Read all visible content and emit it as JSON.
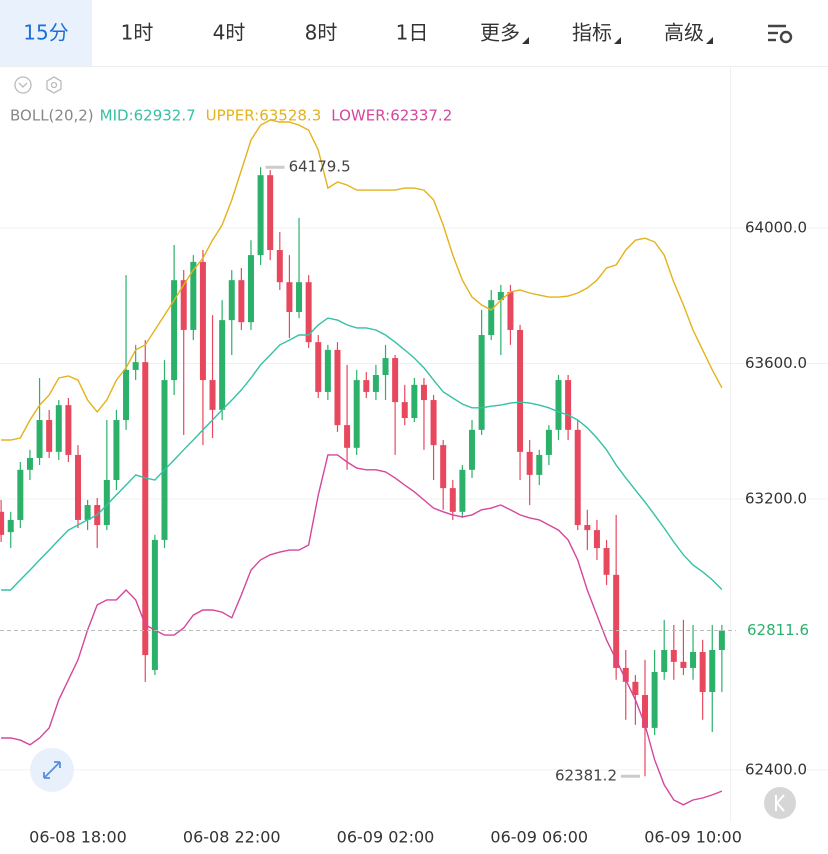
{
  "tabs": [
    {
      "label": "15分"
    },
    {
      "label": "1时"
    },
    {
      "label": "4时"
    },
    {
      "label": "8时"
    },
    {
      "label": "1日"
    },
    {
      "label": "更多",
      "menu": true
    },
    {
      "label": "指标",
      "menu": true
    },
    {
      "label": "高级",
      "menu": true
    }
  ],
  "active_tab": 0,
  "chart_data": {
    "type": "candlestick",
    "indicator": "BOLL(20,2)",
    "up_color": "#2bb16a",
    "down_color": "#e8485e",
    "x": [
      "06-08 16:00",
      "06-08 16:15",
      "06-08 16:30",
      "06-08 16:45",
      "06-08 17:00",
      "06-08 17:15",
      "06-08 17:30",
      "06-08 17:45",
      "06-08 18:00",
      "06-08 18:15",
      "06-08 18:30",
      "06-08 18:45",
      "06-08 19:00",
      "06-08 19:15",
      "06-08 19:30",
      "06-08 19:45",
      "06-08 20:00",
      "06-08 20:15",
      "06-08 20:30",
      "06-08 20:45",
      "06-08 21:00",
      "06-08 21:15",
      "06-08 21:30",
      "06-08 21:45",
      "06-08 22:00",
      "06-08 22:15",
      "06-08 22:30",
      "06-08 22:45",
      "06-08 23:00",
      "06-08 23:15",
      "06-08 23:30",
      "06-08 23:45",
      "06-09 00:00",
      "06-09 00:15",
      "06-09 00:30",
      "06-09 00:45",
      "06-09 01:00",
      "06-09 01:15",
      "06-09 01:30",
      "06-09 01:45",
      "06-09 02:00",
      "06-09 02:15",
      "06-09 02:30",
      "06-09 02:45",
      "06-09 03:00",
      "06-09 03:15",
      "06-09 03:30",
      "06-09 03:45",
      "06-09 04:00",
      "06-09 04:15",
      "06-09 04:30",
      "06-09 04:45",
      "06-09 05:00",
      "06-09 05:15",
      "06-09 05:30",
      "06-09 05:45",
      "06-09 06:00",
      "06-09 06:15",
      "06-09 06:30",
      "06-09 06:45",
      "06-09 07:00",
      "06-09 07:15",
      "06-09 07:30",
      "06-09 07:45",
      "06-09 08:00",
      "06-09 08:15",
      "06-09 08:30",
      "06-09 08:45",
      "06-09 09:00",
      "06-09 09:15",
      "06-09 09:30",
      "06-09 09:45",
      "06-09 10:00",
      "06-09 10:15",
      "06-09 10:30",
      "06-09 10:45"
    ],
    "open": [
      63162,
      63102,
      63138,
      63286,
      63321,
      63433,
      63339,
      63477,
      63330,
      63138,
      63182,
      63123,
      63256,
      63433,
      63581,
      63604,
      62695,
      63079,
      63551,
      63846,
      63699,
      63900,
      63551,
      63463,
      63728,
      63846,
      63722,
      63920,
      64156,
      63935,
      63840,
      63752,
      63840,
      63663,
      63516,
      63640,
      63418,
      63351,
      63551,
      63516,
      63566,
      63616,
      63486,
      63439,
      63537,
      63492,
      63359,
      63232,
      63162,
      63286,
      63404,
      63684,
      63787,
      63811,
      63699,
      63339,
      63271,
      63330,
      63404,
      63551,
      63404,
      63123,
      63108,
      63055,
      62976,
      62701,
      62660,
      62621,
      62524,
      62689,
      62754,
      62719,
      62701,
      62748,
      62630,
      62754
    ],
    "high": [
      63197,
      63162,
      63309,
      63345,
      63557,
      63463,
      63492,
      63498,
      63359,
      63197,
      63203,
      63433,
      63463,
      63861,
      63655,
      63669,
      63094,
      63610,
      63950,
      63876,
      63920,
      63935,
      63743,
      63787,
      63876,
      63882,
      63964,
      64179.5,
      64171,
      63988,
      63920,
      64030,
      63861,
      63684,
      63655,
      63663,
      63596,
      63581,
      63575,
      63596,
      63655,
      63625,
      63537,
      63557,
      63557,
      63507,
      63374,
      63256,
      63300,
      63433,
      63758,
      63817,
      63832,
      63832,
      63714,
      63374,
      63345,
      63418,
      63566,
      63566,
      63433,
      63168,
      63138,
      63079,
      63153,
      62754,
      62680,
      62725,
      62754,
      62843,
      62828,
      62843,
      62828,
      62784,
      62828,
      62828
    ],
    "low": [
      63073,
      63055,
      63114,
      63256,
      63300,
      63321,
      63315,
      63309,
      63114,
      63108,
      63055,
      63108,
      63226,
      63404,
      63551,
      62660,
      62680,
      63055,
      63507,
      63389,
      63669,
      63359,
      63380,
      63433,
      63625,
      63699,
      63699,
      63891,
      63905,
      63817,
      63675,
      63734,
      63646,
      63498,
      63492,
      63398,
      63286,
      63330,
      63498,
      63492,
      63492,
      63330,
      63418,
      63427,
      63345,
      63256,
      63168,
      63138,
      63144,
      63262,
      63389,
      63669,
      63625,
      63655,
      63256,
      63182,
      63241,
      63300,
      63374,
      63374,
      63108,
      63049,
      63020,
      62946,
      62666,
      62548,
      62533,
      62381.2,
      62503,
      62666,
      62666,
      62680,
      62666,
      62548,
      62512,
      62630
    ],
    "close": [
      63094,
      63138,
      63286,
      63321,
      63433,
      63339,
      63477,
      63330,
      63138,
      63182,
      63123,
      63256,
      63433,
      63581,
      63604,
      62739,
      63079,
      63551,
      63846,
      63699,
      63900,
      63551,
      63463,
      63728,
      63846,
      63722,
      63920,
      64156,
      63935,
      63840,
      63752,
      63840,
      63663,
      63516,
      63640,
      63418,
      63351,
      63551,
      63516,
      63566,
      63616,
      63486,
      63439,
      63537,
      63492,
      63359,
      63232,
      63162,
      63286,
      63404,
      63684,
      63787,
      63811,
      63699,
      63339,
      63271,
      63330,
      63404,
      63551,
      63404,
      63123,
      63108,
      63055,
      62976,
      62701,
      62660,
      62621,
      62524,
      62689,
      62754,
      62719,
      62701,
      62748,
      62630,
      62754,
      62811.6
    ],
    "series": [
      {
        "name": "MID:62932.7",
        "color": "#35c1a5",
        "values": [
          62931,
          62931,
          62961,
          62990,
          63020,
          63049,
          63079,
          63108,
          63123,
          63138,
          63153,
          63182,
          63212,
          63241,
          63271,
          63262,
          63256,
          63286,
          63315,
          63345,
          63374,
          63404,
          63433,
          63463,
          63492,
          63522,
          63557,
          63596,
          63625,
          63655,
          63669,
          63684,
          63684,
          63714,
          63734,
          63728,
          63714,
          63705,
          63705,
          63699,
          63684,
          63663,
          63640,
          63616,
          63587,
          63551,
          63516,
          63498,
          63480,
          63469,
          63469,
          63474,
          63477,
          63483,
          63486,
          63483,
          63477,
          63469,
          63457,
          63448,
          63433,
          63410,
          63380,
          63345,
          63300,
          63262,
          63226,
          63191,
          63153,
          63114,
          63073,
          63035,
          63005,
          62985,
          62961,
          62932.7
        ]
      },
      {
        "name": "UPPER:63528.3",
        "color": "#e4b21c",
        "values": [
          63374,
          63374,
          63380,
          63433,
          63477,
          63507,
          63557,
          63563,
          63551,
          63492,
          63457,
          63492,
          63551,
          63587,
          63640,
          63655,
          63699,
          63743,
          63787,
          63832,
          63876,
          63911,
          63964,
          64009,
          64083,
          64171,
          64260,
          64304,
          64319,
          64313,
          64313,
          64304,
          64289,
          64230,
          64118,
          64136,
          64127,
          64112,
          64112,
          64112,
          64112,
          64112,
          64118,
          64118,
          64112,
          64083,
          64009,
          63920,
          63846,
          63796,
          63773,
          63758,
          63787,
          63811,
          63817,
          63808,
          63802,
          63796,
          63796,
          63799,
          63808,
          63823,
          63846,
          63882,
          63891,
          63935,
          63964,
          63970,
          63959,
          63920,
          63840,
          63773,
          63699,
          63640,
          63581,
          63528.3
        ]
      },
      {
        "name": "LOWER:62337.2",
        "color": "#d5469c",
        "values": [
          62494,
          62494,
          62488,
          62474,
          62494,
          62524,
          62607,
          62666,
          62725,
          62813,
          62887,
          62902,
          62902,
          62931,
          62902,
          62828,
          62813,
          62798,
          62798,
          62819,
          62857,
          62872,
          62872,
          62866,
          62849,
          62917,
          62990,
          63020,
          63035,
          63043,
          63049,
          63049,
          63064,
          63212,
          63330,
          63330,
          63309,
          63291,
          63286,
          63286,
          63280,
          63262,
          63241,
          63221,
          63197,
          63173,
          63162,
          63153,
          63147,
          63153,
          63168,
          63173,
          63182,
          63168,
          63153,
          63144,
          63138,
          63123,
          63108,
          63079,
          63020,
          62931,
          62857,
          62784,
          62725,
          62666,
          62607,
          62533,
          62430,
          62356,
          62311,
          62297,
          62311,
          62317,
          62326,
          62337.2
        ]
      }
    ],
    "ylim": [
      62252,
      64378
    ],
    "yticks": [
      {
        "value": 62400,
        "label": "62400.0"
      },
      {
        "value": 63200,
        "label": "63200.0"
      },
      {
        "value": 63600,
        "label": "63600.0"
      },
      {
        "value": 64000,
        "label": "64000.0"
      }
    ],
    "xticks": [
      "06-08 18:00",
      "06-08 22:00",
      "06-09 02:00",
      "06-09 06:00",
      "06-09 10:00"
    ],
    "grid": true,
    "last_price_line": true
  }
}
